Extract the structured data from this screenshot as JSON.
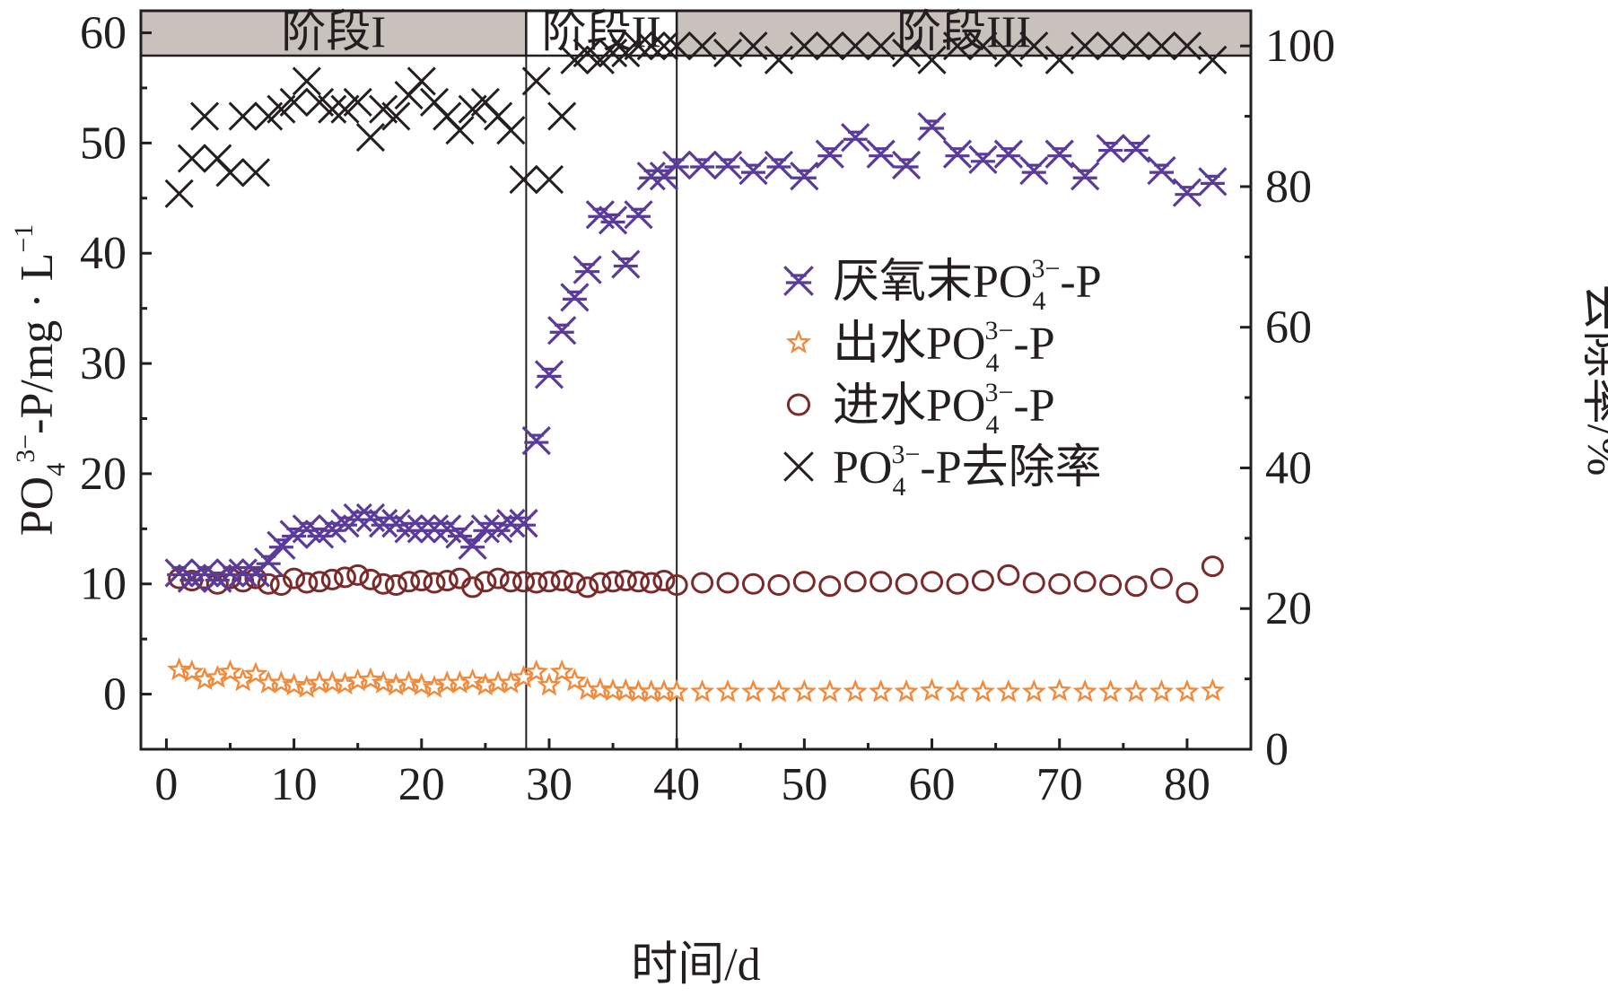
{
  "chart_data": {
    "type": "scatter",
    "xlabel": "时间/d",
    "ylabel": {
      "prefix": "PO",
      "sub": "4",
      "sup": "3−",
      "suffix": "-P/mg · L",
      "sup2": "−1"
    },
    "y2label": "去除率/%",
    "xlim": [
      -2,
      85
    ],
    "ylim": [
      -5,
      62
    ],
    "y2lim": [
      0,
      105
    ],
    "xticks": [
      "0",
      "10",
      "20",
      "30",
      "40",
      "50",
      "60",
      "70",
      "80"
    ],
    "yticks": [
      "0",
      "10",
      "20",
      "30",
      "40",
      "50",
      "60"
    ],
    "y2ticks": [
      "0",
      "20",
      "40",
      "60",
      "80",
      "100"
    ],
    "stages": [
      {
        "label": "阶段I",
        "x0": -2,
        "x1": 28.2
      },
      {
        "label": "阶段II",
        "x0": 28.2,
        "x1": 40
      },
      {
        "label": "阶段III",
        "x0": 40,
        "x1": 85
      }
    ],
    "series": [
      {
        "name": "厌氧末PO43−-P",
        "legend": {
          "prefix": "厌氧末PO",
          "sub": "4",
          "sup": "3−",
          "suffix": "-P"
        },
        "marker": "xstar",
        "color": "#5b3b9a",
        "axis": "left",
        "x": [
          1,
          2,
          3,
          4,
          5,
          6,
          7,
          8,
          9,
          10,
          11,
          12,
          13,
          14,
          15,
          16,
          17,
          18,
          19,
          20,
          21,
          22,
          23,
          24,
          25,
          26,
          27,
          28,
          29,
          30,
          31,
          32,
          33,
          34,
          35,
          36,
          37,
          38,
          39,
          40,
          42,
          44,
          46,
          48,
          50,
          52,
          54,
          56,
          58,
          60,
          62,
          64,
          66,
          68,
          70,
          72,
          74,
          76,
          78,
          80,
          82
        ],
        "values": [
          11,
          10.5,
          11,
          10.5,
          11,
          11,
          11,
          12,
          13.5,
          14.5,
          15,
          14.5,
          15,
          15.5,
          16,
          16,
          15.5,
          15.5,
          15,
          15,
          15,
          15,
          14.5,
          13.5,
          15,
          15,
          15.5,
          15.5,
          23,
          29,
          33,
          36,
          38.5,
          43.5,
          43,
          39,
          43.5,
          47,
          47,
          48,
          48,
          48,
          47.5,
          48,
          47,
          49,
          50.5,
          49,
          48,
          51.5,
          49,
          48.5,
          49,
          47.5,
          49,
          47,
          49.5,
          49.5,
          47.5,
          45.5,
          46.5
        ]
      },
      {
        "name": "出水PO43−-P",
        "legend": {
          "prefix": "出水PO",
          "sub": "4",
          "sup": "3−",
          "suffix": "-P"
        },
        "marker": "star",
        "color": "#f08a3c",
        "axis": "left",
        "x": [
          1,
          2,
          3,
          4,
          5,
          6,
          7,
          8,
          9,
          10,
          11,
          12,
          13,
          14,
          15,
          16,
          17,
          18,
          19,
          20,
          21,
          22,
          23,
          24,
          25,
          26,
          27,
          28,
          29,
          30,
          31,
          32,
          33,
          34,
          35,
          36,
          37,
          38,
          39,
          40,
          42,
          44,
          46,
          48,
          50,
          52,
          54,
          56,
          58,
          60,
          62,
          64,
          66,
          68,
          70,
          72,
          74,
          76,
          78,
          80,
          82
        ],
        "values": [
          2.2,
          2,
          1.3,
          1.5,
          2,
          1.2,
          1.8,
          1,
          1,
          0.8,
          0.6,
          1,
          1,
          0.9,
          1.2,
          1.3,
          1,
          0.8,
          1,
          0.8,
          0.6,
          1,
          1,
          1.2,
          0.8,
          1,
          1,
          1.5,
          2,
          0.8,
          2,
          1.2,
          0.4,
          0.4,
          0.3,
          0.3,
          0.2,
          0.2,
          0.2,
          0.2,
          0.2,
          0.2,
          0.2,
          0.2,
          0.2,
          0.2,
          0.2,
          0.2,
          0.2,
          0.3,
          0.2,
          0.2,
          0.2,
          0.2,
          0.3,
          0.2,
          0.2,
          0.2,
          0.2,
          0.2,
          0.3
        ]
      },
      {
        "name": "进水PO43−-P",
        "legend": {
          "prefix": "进水PO",
          "sub": "4",
          "sup": "3−",
          "suffix": "-P"
        },
        "marker": "circle",
        "color": "#7a2a2a",
        "axis": "left",
        "x": [
          1,
          2,
          3,
          4,
          5,
          6,
          7,
          8,
          9,
          10,
          11,
          12,
          13,
          14,
          15,
          16,
          17,
          18,
          19,
          20,
          21,
          22,
          23,
          24,
          25,
          26,
          27,
          28,
          29,
          30,
          31,
          32,
          33,
          34,
          35,
          36,
          37,
          38,
          39,
          40,
          42,
          44,
          46,
          48,
          50,
          52,
          54,
          56,
          58,
          60,
          62,
          64,
          66,
          68,
          70,
          72,
          74,
          76,
          78,
          80,
          82
        ],
        "values": [
          10.5,
          10.3,
          10.5,
          10,
          10.5,
          10.2,
          10.5,
          10,
          9.9,
          10.5,
          10.1,
          10.2,
          10.4,
          10.6,
          10.8,
          10.4,
          10,
          9.9,
          10.2,
          10.3,
          10.1,
          10.3,
          10.5,
          9.7,
          10.2,
          10.5,
          10.2,
          10.2,
          10.1,
          10.2,
          10.3,
          10.1,
          9.7,
          10.1,
          10.2,
          10.3,
          10.2,
          10.1,
          10.3,
          9.9,
          10.1,
          10.1,
          10,
          9.9,
          10.2,
          9.8,
          10.2,
          10.2,
          10,
          10.2,
          10,
          10.3,
          10.8,
          10.1,
          10,
          10.2,
          9.9,
          9.8,
          10.5,
          9.2,
          11.6
        ]
      },
      {
        "name": "PO43−-P去除率",
        "legend": {
          "prefix": "PO",
          "sub": "4",
          "sup": "3−",
          "suffix": "-P去除率"
        },
        "marker": "x",
        "color": "#231f20",
        "axis": "right",
        "x": [
          1,
          2,
          3,
          4,
          5,
          6,
          7,
          8,
          9,
          10,
          11,
          12,
          13,
          14,
          15,
          16,
          17,
          18,
          19,
          20,
          21,
          22,
          23,
          24,
          25,
          26,
          27,
          28,
          29,
          30,
          31,
          32,
          33,
          34,
          35,
          36,
          37,
          38,
          39,
          40,
          42,
          44,
          46,
          48,
          50,
          52,
          54,
          56,
          58,
          60,
          62,
          64,
          66,
          68,
          70,
          72,
          74,
          76,
          78,
          80,
          82
        ],
        "values": [
          79,
          84,
          90,
          84,
          82,
          90,
          82,
          90,
          91,
          92,
          95,
          92,
          91,
          91,
          92,
          87,
          91,
          90,
          93,
          95,
          92,
          90,
          88,
          91,
          92,
          90,
          88,
          81,
          95,
          81,
          90,
          98,
          99,
          98,
          99,
          99,
          100,
          100,
          100,
          100,
          100,
          99,
          100,
          98,
          100,
          100,
          100,
          100,
          99,
          98,
          100,
          100,
          99,
          100,
          98,
          100,
          100,
          100,
          100,
          100,
          98
        ]
      }
    ]
  }
}
